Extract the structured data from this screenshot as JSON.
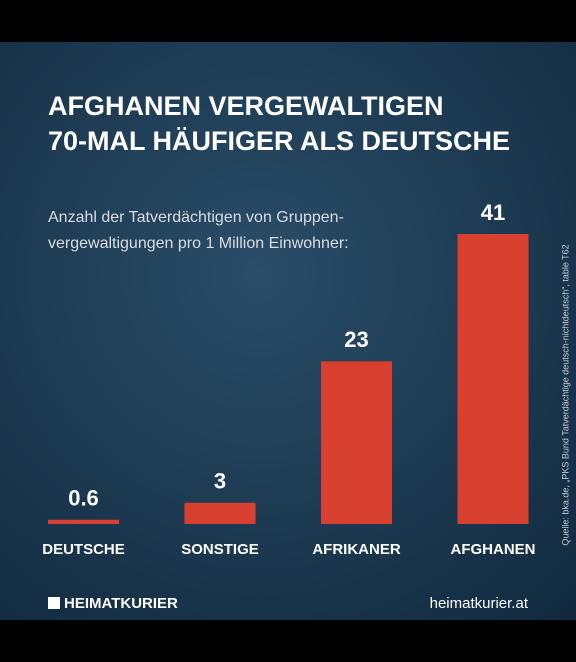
{
  "chart_data": {
    "type": "bar",
    "title": [
      "AFGHANEN VERGEWALTIGEN",
      "70-MAL HÄUFIGER ALS DEUTSCHE"
    ],
    "subtitle": [
      "Anzahl der Tatverdächtigen von Gruppen-",
      "vergewaltigungen pro 1 Million Einwohner:"
    ],
    "categories": [
      "DEUTSCHE",
      "SONSTIGE",
      "AFRIKANER",
      "AFGHANEN"
    ],
    "values": [
      0.6,
      3,
      23,
      41
    ],
    "color": "#d8412f",
    "source": "Quelle: bka.de, „PKS Bund Tatverdächtige deutsch-nichtdeutsch“, table T62",
    "brand": "HEIMATKURIER",
    "website": "heimatkurier.at"
  }
}
